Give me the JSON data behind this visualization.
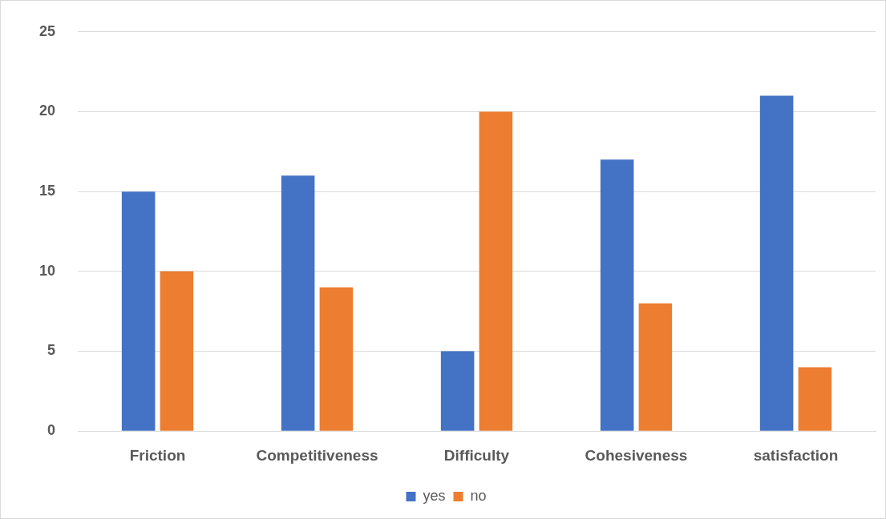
{
  "chart_data": {
    "type": "bar",
    "categories": [
      "Friction",
      "Competitiveness",
      "Difficulty",
      "Cohesiveness",
      "satisfaction"
    ],
    "series": [
      {
        "name": "yes",
        "color": "#4472c4",
        "values": [
          15,
          16,
          5,
          17,
          21
        ]
      },
      {
        "name": "no",
        "color": "#ed7d31",
        "values": [
          10,
          9,
          20,
          8,
          4
        ]
      }
    ],
    "ylim": [
      0,
      25
    ],
    "yticks": [
      0,
      5,
      10,
      15,
      20,
      25
    ],
    "grid": "y",
    "legend": "bottom"
  }
}
